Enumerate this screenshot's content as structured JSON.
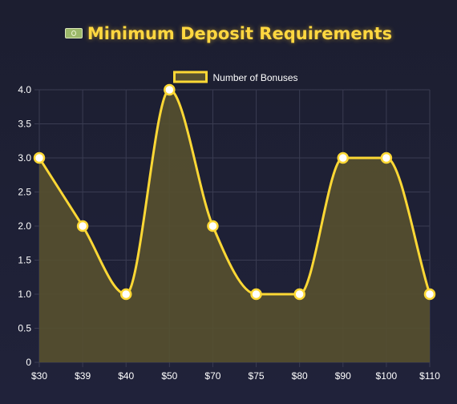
{
  "title": "Minimum Deposit Requirements",
  "title_icon": "money-bill-icon",
  "chart_data": {
    "type": "line",
    "fill": "area",
    "smooth": true,
    "title": "Minimum Deposit Requirements",
    "categories": [
      "$30",
      "$39",
      "$40",
      "$50",
      "$70",
      "$75",
      "$80",
      "$90",
      "$100",
      "$110"
    ],
    "series": [
      {
        "name": "Number of Bonuses",
        "values": [
          3,
          2,
          1,
          4,
          2,
          1,
          1,
          3,
          3,
          1
        ],
        "color": "#fdd835",
        "fill_color": "#57502f"
      }
    ],
    "yticks": [
      "0",
      "0.5",
      "1.0",
      "1.5",
      "2.0",
      "2.5",
      "3.0",
      "3.5",
      "4.0"
    ],
    "ylim": [
      0,
      4
    ],
    "grid": true,
    "legend_position": "top-center",
    "xlabel": "",
    "ylabel": ""
  },
  "colors": {
    "background": "#1e2034",
    "title": "#ffd740",
    "line": "#fdd835",
    "point_fill": "#ffffff",
    "grid": "#3a3c52"
  }
}
